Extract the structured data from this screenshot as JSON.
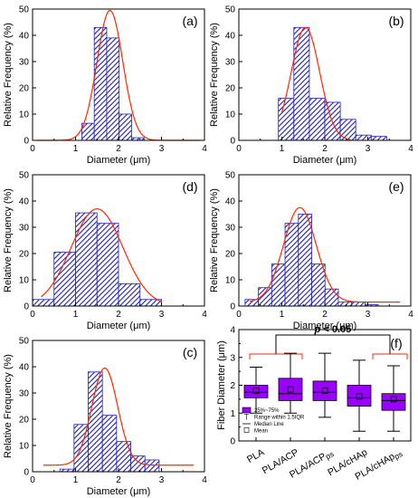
{
  "figure": {
    "title": ""
  },
  "chart_data": [
    {
      "id": "a",
      "type": "bar",
      "panel_label": "(a)",
      "xlabel": "Diameter (μm)",
      "ylabel": "Relative Frequency (%)",
      "xlim": [
        0,
        4
      ],
      "ylim": [
        0,
        50
      ],
      "xticks": [
        0,
        1,
        2,
        3,
        4
      ],
      "yticks": [
        0,
        10,
        20,
        30,
        40,
        50
      ],
      "bin_width": 0.29,
      "categories": [
        "1.29",
        "1.58",
        "1.87",
        "2.16",
        "2.45"
      ],
      "bins": [
        1.29,
        1.58,
        1.87,
        2.16,
        2.45
      ],
      "values": [
        6.5,
        43,
        39,
        10,
        1
      ],
      "fit": {
        "type": "gaussian",
        "mu": 1.8,
        "sigma": 0.3,
        "amp": 49.5,
        "range": [
          0.1,
          3.9
        ]
      },
      "grid": false
    },
    {
      "id": "b",
      "type": "bar",
      "panel_label": "(b)",
      "xlabel": "Diameter (μm)",
      "ylabel": "Relative Frequency (%)",
      "xlim": [
        0,
        4
      ],
      "ylim": [
        0,
        50
      ],
      "xticks": [
        0,
        1,
        2,
        3,
        4
      ],
      "yticks": [
        0,
        10,
        20,
        30,
        40,
        50
      ],
      "bin_width": 0.36,
      "categories": [
        "1.1",
        "1.46",
        "1.82",
        "2.18",
        "2.54",
        "2.9",
        "3.26",
        "3.62"
      ],
      "bins": [
        1.1,
        1.46,
        1.82,
        2.18,
        2.54,
        2.9,
        3.26,
        3.62
      ],
      "values": [
        16,
        43,
        16,
        14.5,
        8,
        2,
        1.5,
        0
      ],
      "fit": {
        "type": "gaussian",
        "mu": 1.55,
        "sigma": 0.33,
        "amp": 43,
        "range": [
          1.0,
          2.6
        ]
      },
      "grid": false
    },
    {
      "id": "d",
      "type": "bar",
      "panel_label": "(d)",
      "xlabel": "Diameter (μm)",
      "ylabel": "Relative Frequency (%)",
      "xlim": [
        0,
        4
      ],
      "ylim": [
        0,
        50
      ],
      "xticks": [
        0,
        1,
        2,
        3,
        4
      ],
      "yticks": [
        0,
        10,
        20,
        30,
        40,
        50
      ],
      "bin_width": 0.5,
      "categories": [
        "0.25",
        "0.75",
        "1.25",
        "1.75",
        "2.25",
        "2.75"
      ],
      "bins": [
        0.25,
        0.75,
        1.25,
        1.75,
        2.25,
        2.75
      ],
      "values": [
        2.5,
        20.5,
        35.5,
        31.5,
        8.5,
        2.5
      ],
      "fit": {
        "type": "gaussian",
        "mu": 1.5,
        "sigma": 0.6,
        "amp": 37,
        "range": [
          0.2,
          3.0
        ]
      },
      "grid": false
    },
    {
      "id": "e",
      "type": "bar",
      "panel_label": "(e)",
      "xlabel": "Diameter (μm)",
      "ylabel": "Relative Frequency (%)",
      "xlim": [
        0,
        4
      ],
      "ylim": [
        0,
        50
      ],
      "xticks": [
        0,
        1,
        2,
        3,
        4
      ],
      "yticks": [
        0,
        10,
        20,
        30,
        40,
        50
      ],
      "bin_width": 0.31,
      "categories": [
        "0.3",
        "0.61",
        "0.92",
        "1.23",
        "1.54",
        "1.85",
        "2.16",
        "2.47",
        "2.78",
        "3.09"
      ],
      "bins": [
        0.3,
        0.61,
        0.92,
        1.23,
        1.54,
        1.85,
        2.16,
        2.47,
        2.78,
        3.09
      ],
      "values": [
        2.5,
        7,
        16,
        31.5,
        35,
        16,
        6.5,
        1.5,
        1.5,
        0.5
      ],
      "fit": {
        "type": "gaussian",
        "mu": 1.42,
        "sigma": 0.38,
        "amp": 36,
        "base": 1.5,
        "range": [
          0.25,
          3.75
        ]
      },
      "grid": false
    },
    {
      "id": "c",
      "type": "bar",
      "panel_label": "(c)",
      "xlabel": "Diameter (μm)",
      "ylabel": "Relative Frequency (%)",
      "xlim": [
        0,
        4
      ],
      "ylim": [
        0,
        50
      ],
      "xticks": [
        0,
        1,
        2,
        3,
        4
      ],
      "yticks": [
        0,
        10,
        20,
        30,
        40,
        50
      ],
      "bin_width": 0.33,
      "categories": [
        "0.8",
        "1.13",
        "1.46",
        "1.79",
        "2.12",
        "2.45",
        "2.78",
        "3.11"
      ],
      "bins": [
        0.8,
        1.13,
        1.46,
        1.79,
        2.12,
        2.45,
        2.78,
        3.11
      ],
      "values": [
        1,
        18,
        38,
        21.5,
        11.5,
        6,
        4.5,
        0
      ],
      "fit": {
        "type": "gaussian",
        "mu": 1.68,
        "sigma": 0.3,
        "amp": 37,
        "base": 2.5,
        "range": [
          0.25,
          3.75
        ]
      },
      "grid": false
    },
    {
      "id": "f",
      "type": "box",
      "panel_label": "(f)",
      "ylabel": "Fiber Diameter (μm)",
      "ylim": [
        0,
        4
      ],
      "yticks": [
        0,
        1,
        2,
        3,
        4
      ],
      "categories": [
        "PLA",
        "PLA/ACP",
        "PLA/ACP",
        "PLA/cHAp",
        "PLA/cHAp"
      ],
      "category_suffix": [
        "",
        "",
        "ps",
        "",
        "ps"
      ],
      "boxes": [
        {
          "q1": 1.55,
          "median": 1.75,
          "q3": 2.0,
          "whisker_low": 1.0,
          "whisker_high": 2.65,
          "mean": 1.8
        },
        {
          "q1": 1.45,
          "median": 1.7,
          "q3": 2.25,
          "whisker_low": 1.0,
          "whisker_high": 3.15,
          "mean": 1.85
        },
        {
          "q1": 1.45,
          "median": 1.75,
          "q3": 2.15,
          "whisker_low": 0.85,
          "whisker_high": 3.15,
          "mean": 1.8
        },
        {
          "q1": 1.25,
          "median": 1.55,
          "q3": 2.0,
          "whisker_low": 0.35,
          "whisker_high": 2.9,
          "mean": 1.6
        },
        {
          "q1": 1.1,
          "median": 1.45,
          "q3": 1.7,
          "whisker_low": 0.35,
          "whisker_high": 2.7,
          "mean": 1.5
        }
      ],
      "annotation": {
        "pre": "p",
        "post": " < 0.05"
      },
      "legend": {
        "placement": "bottom-left",
        "items": [
          "25%~75%",
          "Range within 1.5IQR",
          "Median Line",
          "Mean"
        ]
      },
      "box_color": "#9900ff",
      "bracket_color": "#ff2a00",
      "grid": false
    }
  ],
  "colors": {
    "bar_stripe": "#1f1fb8",
    "fit_line": "#ff2a00",
    "axis": "#000000"
  }
}
